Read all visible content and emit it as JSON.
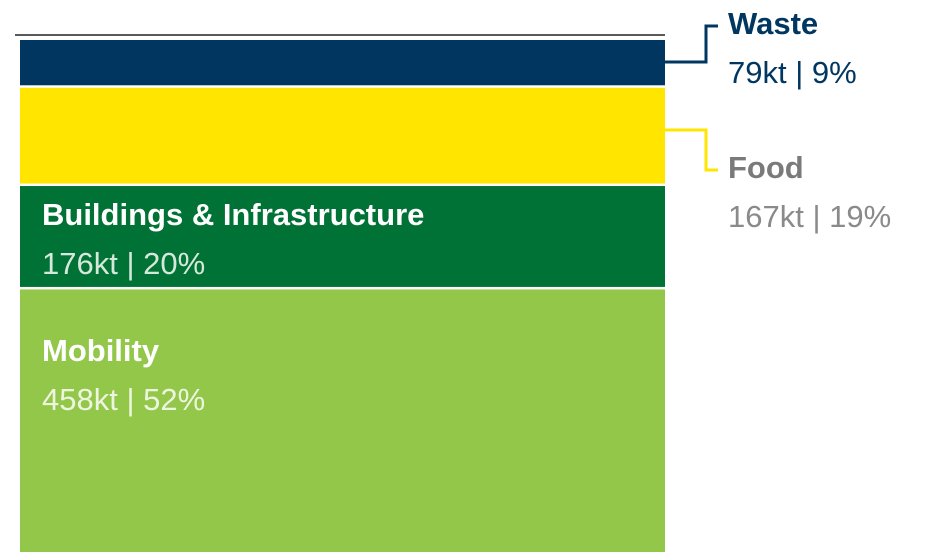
{
  "chart_data": {
    "type": "stacked-bar",
    "series": [
      {
        "name": "Mobility",
        "color": "#92c74a",
        "values": [
          458
        ],
        "value_labels": [
          "458kt | 52%"
        ]
      },
      {
        "name": "Buildings & Infrastructure",
        "color": "#007236",
        "values": [
          176
        ],
        "value_labels": [
          "176kt | 20%"
        ]
      },
      {
        "name": "Food",
        "color": "#ffe500",
        "values": [
          167
        ],
        "value_labels": [
          "167kt | 19%"
        ]
      },
      {
        "name": "Waste",
        "color": "#003660",
        "values": [
          79
        ],
        "value_labels": [
          "79kt | 9%"
        ]
      }
    ]
  }
}
